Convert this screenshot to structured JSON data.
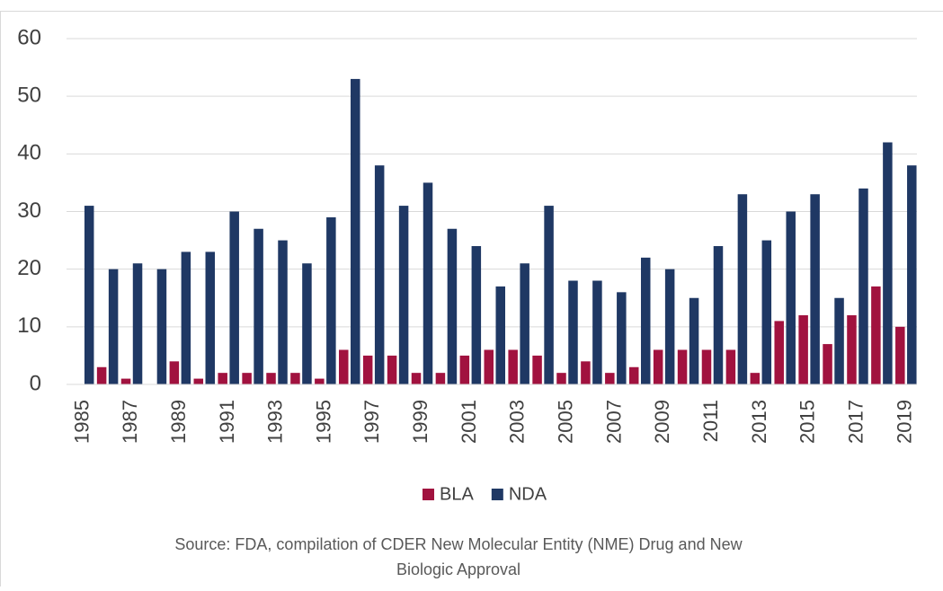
{
  "chart_data": {
    "type": "bar",
    "categories": [
      "1985",
      null,
      "1987",
      null,
      "1989",
      null,
      "1991",
      null,
      "1993",
      null,
      "1995",
      null,
      "1997",
      null,
      "1999",
      null,
      "2001",
      null,
      "2003",
      null,
      "2005",
      null,
      "2007",
      null,
      "2009",
      null,
      "2011",
      null,
      "2013",
      null,
      "2015",
      null,
      "2017",
      null,
      "2019"
    ],
    "series": [
      {
        "name": "BLA",
        "color": "#a1123f",
        "values": [
          0,
          3,
          1,
          0,
          4,
          1,
          2,
          2,
          2,
          2,
          1,
          6,
          5,
          5,
          2,
          2,
          5,
          6,
          6,
          5,
          2,
          4,
          2,
          3,
          6,
          6,
          6,
          6,
          2,
          11,
          12,
          7,
          12,
          17,
          10
        ]
      },
      {
        "name": "NDA",
        "color": "#1f3864",
        "values": [
          31,
          20,
          21,
          20,
          23,
          23,
          30,
          27,
          25,
          21,
          29,
          53,
          38,
          31,
          35,
          27,
          24,
          17,
          21,
          31,
          18,
          18,
          16,
          22,
          20,
          15,
          24,
          33,
          25,
          30,
          33,
          15,
          34,
          42,
          38
        ]
      }
    ],
    "ylim": [
      0,
      60
    ],
    "yticks": [
      0,
      10,
      20,
      30,
      40,
      50,
      60
    ],
    "grid": true,
    "legend": "bottom",
    "source": [
      "Source: FDA, compilation of CDER New Molecular Entity (NME) Drug and New",
      "Biologic Approval"
    ]
  }
}
